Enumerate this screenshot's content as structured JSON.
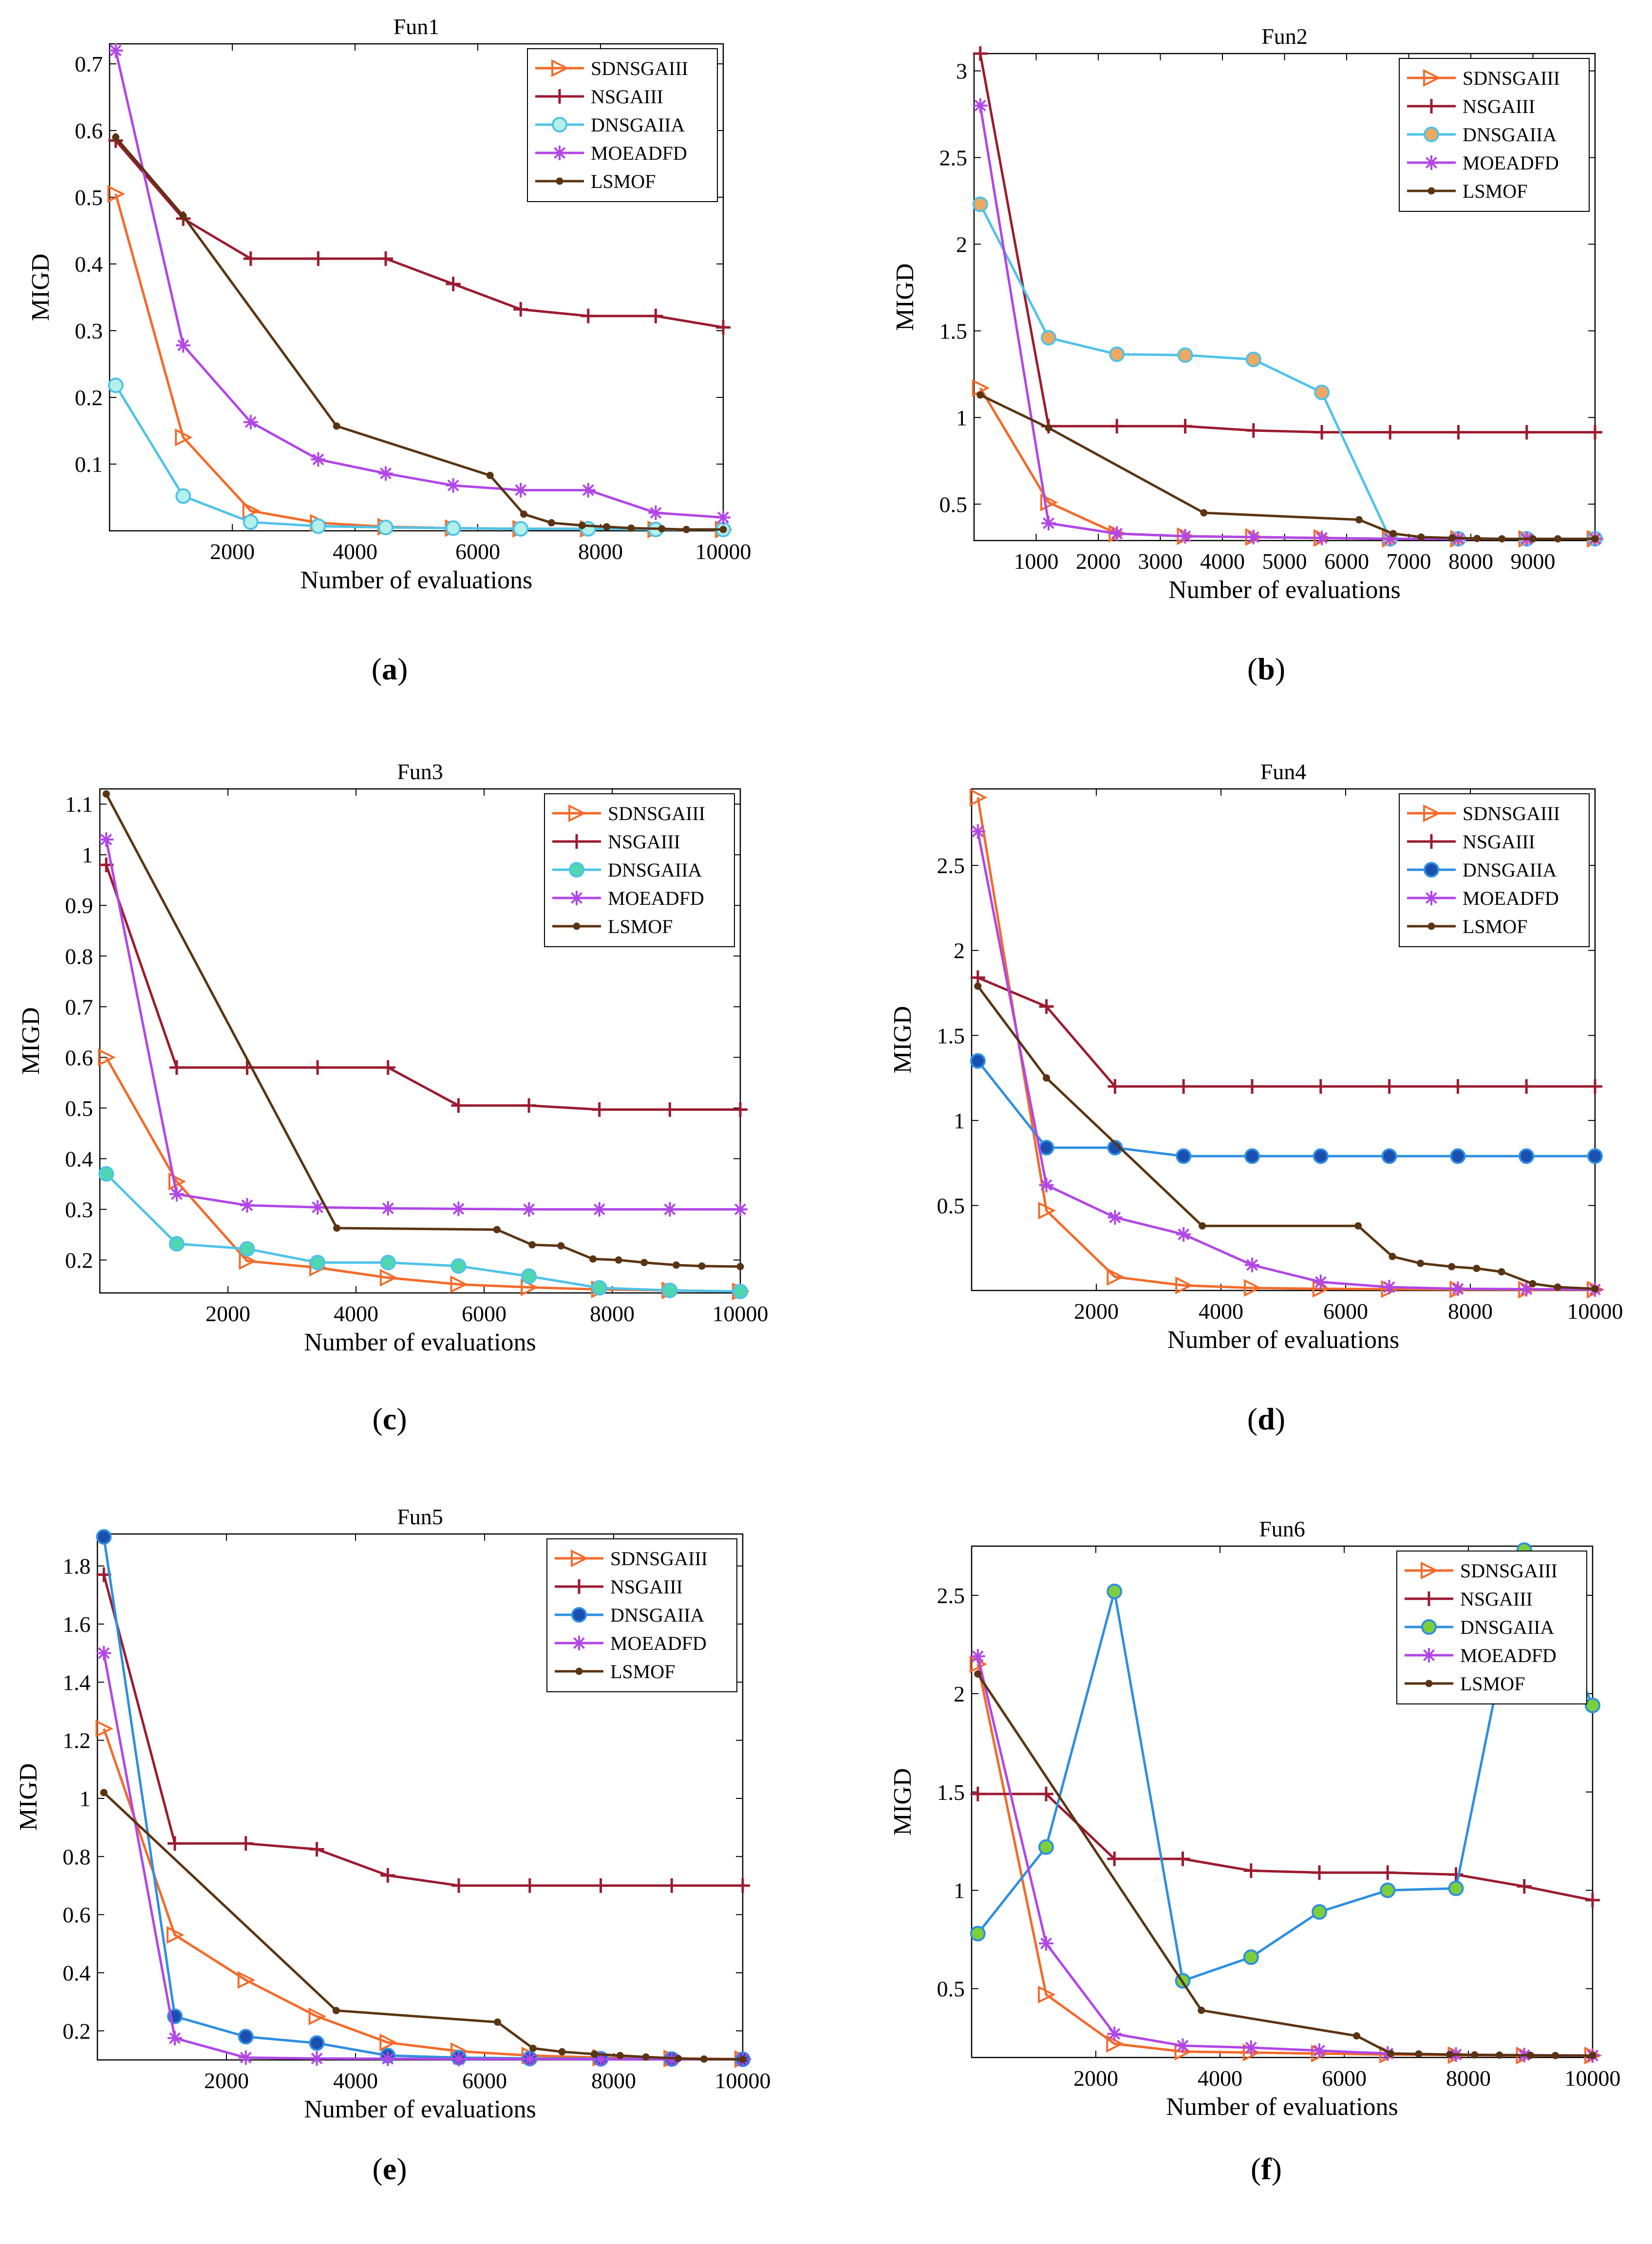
{
  "figure": {
    "panels": [
      {
        "caption": "a"
      },
      {
        "caption": "b"
      },
      {
        "caption": "c"
      },
      {
        "caption": "d"
      },
      {
        "caption": "e"
      },
      {
        "caption": "f"
      }
    ]
  },
  "chart_data": [
    {
      "type": "line",
      "title": "Fun1",
      "xlabel": "Number of evaluations",
      "ylabel": "MIGD",
      "xlim": [
        0,
        10000
      ],
      "ylim": [
        0,
        0.73
      ],
      "xticks": [
        2000,
        4000,
        6000,
        8000,
        10000
      ],
      "yticks": [
        0.1,
        0.2,
        0.3,
        0.4,
        0.5,
        0.6,
        0.7
      ],
      "legend_position": "top-right",
      "series": [
        {
          "name": "SDNSGAIII",
          "color": "#f26b2a",
          "marker": "triangle-right-open",
          "x": [
            100,
            1200,
            2300,
            3400,
            4500,
            5600,
            6700,
            7800,
            8900,
            10000
          ],
          "y": [
            0.505,
            0.14,
            0.03,
            0.012,
            0.006,
            0.004,
            0.003,
            0.003,
            0.002,
            0.002
          ]
        },
        {
          "name": "NSGAIII",
          "color": "#9b1b30",
          "marker": "plus",
          "x": [
            100,
            1200,
            2300,
            3400,
            4500,
            5600,
            6700,
            7800,
            8900,
            10000
          ],
          "y": [
            0.585,
            0.468,
            0.408,
            0.408,
            0.408,
            0.37,
            0.332,
            0.322,
            0.322,
            0.305
          ]
        },
        {
          "name": "DNSGAIIA",
          "color": "#4fc3e8",
          "marker": "circle",
          "fill": "#b4f0ea",
          "x": [
            100,
            1200,
            2300,
            3400,
            4500,
            5600,
            6700,
            7800,
            8900,
            10000
          ],
          "y": [
            0.218,
            0.052,
            0.013,
            0.007,
            0.005,
            0.004,
            0.003,
            0.003,
            0.002,
            0.002
          ]
        },
        {
          "name": "MOEADFD",
          "color": "#b147e6",
          "marker": "star",
          "x": [
            100,
            1200,
            2300,
            3400,
            4500,
            5600,
            6700,
            7800,
            8900,
            10000
          ],
          "y": [
            0.72,
            0.278,
            0.163,
            0.107,
            0.086,
            0.068,
            0.061,
            0.061,
            0.027,
            0.02
          ]
        },
        {
          "name": "LSMOF",
          "color": "#5a3412",
          "marker": "dot",
          "x": [
            100,
            1200,
            3700,
            6200,
            6750,
            7200,
            7700,
            8100,
            8500,
            9000,
            9400,
            10000
          ],
          "y": [
            0.59,
            0.472,
            0.157,
            0.083,
            0.025,
            0.012,
            0.008,
            0.006,
            0.004,
            0.003,
            0.002,
            0.002
          ]
        }
      ]
    },
    {
      "type": "line",
      "title": "Fun2",
      "xlabel": "Number of evaluations",
      "ylabel": "MIGD",
      "xlim": [
        0,
        10000
      ],
      "ylim": [
        0.29,
        3.1
      ],
      "xticks": [
        1000,
        2000,
        3000,
        4000,
        5000,
        6000,
        7000,
        8000,
        9000
      ],
      "yticks": [
        0.5,
        1,
        1.5,
        2,
        2.5,
        3
      ],
      "legend_position": "top-right",
      "series": [
        {
          "name": "SDNSGAIII",
          "color": "#f26b2a",
          "marker": "triangle-right-open",
          "x": [
            100,
            1200,
            2300,
            3400,
            4500,
            5600,
            6700,
            7800,
            8900,
            10000
          ],
          "y": [
            1.17,
            0.51,
            0.33,
            0.315,
            0.31,
            0.305,
            0.3,
            0.3,
            0.3,
            0.3
          ]
        },
        {
          "name": "NSGAIII",
          "color": "#9b1b30",
          "marker": "plus",
          "x": [
            100,
            1200,
            2300,
            3400,
            4500,
            5600,
            6700,
            7800,
            8900,
            10000
          ],
          "y": [
            3.1,
            0.95,
            0.95,
            0.95,
            0.925,
            0.915,
            0.915,
            0.915,
            0.915,
            0.915
          ]
        },
        {
          "name": "DNSGAIIA",
          "color": "#4fc3e8",
          "marker": "circle",
          "fill": "#f0a860",
          "x": [
            100,
            1200,
            2300,
            3400,
            4500,
            5600,
            6700,
            7800,
            8900,
            10000
          ],
          "y": [
            2.23,
            1.46,
            1.365,
            1.36,
            1.335,
            1.145,
            0.3,
            0.3,
            0.3,
            0.3
          ]
        },
        {
          "name": "MOEADFD",
          "color": "#b147e6",
          "marker": "star",
          "x": [
            100,
            1200,
            2300,
            3400,
            4500,
            5600,
            6700,
            7800,
            8900,
            10000
          ],
          "y": [
            2.8,
            0.39,
            0.33,
            0.315,
            0.31,
            0.305,
            0.3,
            0.3,
            0.3,
            0.3
          ]
        },
        {
          "name": "LSMOF",
          "color": "#5a3412",
          "marker": "dot",
          "x": [
            100,
            1200,
            3700,
            6200,
            6750,
            7200,
            7700,
            8100,
            8500,
            9000,
            9400,
            10000
          ],
          "y": [
            1.13,
            0.94,
            0.45,
            0.41,
            0.33,
            0.31,
            0.305,
            0.302,
            0.3,
            0.3,
            0.3,
            0.3
          ]
        }
      ]
    },
    {
      "type": "line",
      "title": "Fun3",
      "xlabel": "Number of evaluations",
      "ylabel": "MIGD",
      "xlim": [
        0,
        10000
      ],
      "ylim": [
        0.135,
        1.13
      ],
      "xticks": [
        2000,
        4000,
        6000,
        8000,
        10000
      ],
      "yticks": [
        0.2,
        0.3,
        0.4,
        0.5,
        0.6,
        0.7,
        0.8,
        0.9,
        1,
        1.1
      ],
      "legend_position": "top-right",
      "series": [
        {
          "name": "SDNSGAIII",
          "color": "#f26b2a",
          "marker": "triangle-right-open",
          "x": [
            100,
            1200,
            2300,
            3400,
            4500,
            5600,
            6700,
            7800,
            8900,
            10000
          ],
          "y": [
            0.6,
            0.355,
            0.198,
            0.185,
            0.165,
            0.152,
            0.146,
            0.142,
            0.14,
            0.138
          ]
        },
        {
          "name": "NSGAIII",
          "color": "#9b1b30",
          "marker": "plus",
          "x": [
            100,
            1200,
            2300,
            3400,
            4500,
            5600,
            6700,
            7800,
            8900,
            10000
          ],
          "y": [
            0.98,
            0.58,
            0.58,
            0.58,
            0.58,
            0.505,
            0.505,
            0.497,
            0.497,
            0.497
          ]
        },
        {
          "name": "DNSGAIIA",
          "color": "#4fc3e8",
          "marker": "circle",
          "fill": "#4fd8b0",
          "x": [
            100,
            1200,
            2300,
            3400,
            4500,
            5600,
            6700,
            7800,
            8900,
            10000
          ],
          "y": [
            0.37,
            0.232,
            0.222,
            0.195,
            0.195,
            0.188,
            0.168,
            0.145,
            0.14,
            0.138
          ]
        },
        {
          "name": "MOEADFD",
          "color": "#b147e6",
          "marker": "star",
          "x": [
            100,
            1200,
            2300,
            3400,
            4500,
            5600,
            6700,
            7800,
            8900,
            10000
          ],
          "y": [
            1.03,
            0.33,
            0.308,
            0.304,
            0.302,
            0.301,
            0.3,
            0.3,
            0.3,
            0.3
          ]
        },
        {
          "name": "LSMOF",
          "color": "#5a3412",
          "marker": "dot",
          "x": [
            100,
            3700,
            6200,
            6750,
            7200,
            7700,
            8100,
            8500,
            9000,
            9400,
            10000
          ],
          "y": [
            1.12,
            0.263,
            0.26,
            0.23,
            0.228,
            0.202,
            0.2,
            0.195,
            0.19,
            0.188,
            0.187
          ]
        }
      ]
    },
    {
      "type": "line",
      "title": "Fun4",
      "xlabel": "Number of evaluations",
      "ylabel": "MIGD",
      "xlim": [
        0,
        10000
      ],
      "ylim": [
        0,
        2.95
      ],
      "xticks": [
        2000,
        4000,
        6000,
        8000,
        10000
      ],
      "yticks": [
        0.5,
        1,
        1.5,
        2,
        2.5
      ],
      "legend_position": "top-right",
      "series": [
        {
          "name": "SDNSGAIII",
          "color": "#f26b2a",
          "marker": "triangle-right-open",
          "x": [
            100,
            1200,
            2300,
            3400,
            4500,
            5600,
            6700,
            7800,
            8900,
            10000
          ],
          "y": [
            2.9,
            0.47,
            0.08,
            0.03,
            0.015,
            0.01,
            0.008,
            0.006,
            0.005,
            0.005
          ]
        },
        {
          "name": "NSGAIII",
          "color": "#9b1b30",
          "marker": "plus",
          "x": [
            100,
            1200,
            2300,
            3400,
            4500,
            5600,
            6700,
            7800,
            8900,
            10000
          ],
          "y": [
            1.84,
            1.67,
            1.2,
            1.2,
            1.2,
            1.2,
            1.2,
            1.2,
            1.2,
            1.2
          ]
        },
        {
          "name": "DNSGAIIA",
          "color": "#2e8fe0",
          "marker": "circle",
          "fill": "#1a4fb0",
          "x": [
            100,
            1200,
            2300,
            3400,
            4500,
            5600,
            6700,
            7800,
            8900,
            10000
          ],
          "y": [
            1.35,
            0.84,
            0.84,
            0.79,
            0.79,
            0.79,
            0.79,
            0.79,
            0.79,
            0.79
          ]
        },
        {
          "name": "MOEADFD",
          "color": "#b147e6",
          "marker": "star",
          "x": [
            100,
            1200,
            2300,
            3400,
            4500,
            5600,
            6700,
            7800,
            8900,
            10000
          ],
          "y": [
            2.7,
            0.62,
            0.43,
            0.33,
            0.15,
            0.05,
            0.02,
            0.01,
            0.008,
            0.006
          ]
        },
        {
          "name": "LSMOF",
          "color": "#5a3412",
          "marker": "dot",
          "x": [
            100,
            1200,
            3700,
            6200,
            6750,
            7200,
            7700,
            8100,
            8500,
            9000,
            9400,
            10000
          ],
          "y": [
            1.79,
            1.25,
            0.38,
            0.38,
            0.2,
            0.16,
            0.14,
            0.13,
            0.11,
            0.04,
            0.02,
            0.01
          ]
        }
      ]
    },
    {
      "type": "line",
      "title": "Fun5",
      "xlabel": "Number of evaluations",
      "ylabel": "MIGD",
      "xlim": [
        0,
        10000
      ],
      "ylim": [
        0.1,
        1.91
      ],
      "xticks": [
        2000,
        4000,
        6000,
        8000,
        10000
      ],
      "yticks": [
        0.2,
        0.4,
        0.6,
        0.8,
        1,
        1.2,
        1.4,
        1.6,
        1.8
      ],
      "legend_position": "top-right",
      "series": [
        {
          "name": "SDNSGAIII",
          "color": "#f26b2a",
          "marker": "triangle-right-open",
          "x": [
            100,
            1200,
            2300,
            3400,
            4500,
            5600,
            6700,
            7800,
            8900,
            10000
          ],
          "y": [
            1.24,
            0.53,
            0.375,
            0.25,
            0.16,
            0.13,
            0.115,
            0.108,
            0.105,
            0.103
          ]
        },
        {
          "name": "NSGAIII",
          "color": "#9b1b30",
          "marker": "plus",
          "x": [
            100,
            1200,
            2300,
            3400,
            4500,
            5600,
            6700,
            7800,
            8900,
            10000
          ],
          "y": [
            1.77,
            0.845,
            0.845,
            0.825,
            0.735,
            0.7,
            0.7,
            0.7,
            0.7,
            0.7
          ]
        },
        {
          "name": "DNSGAIIA",
          "color": "#2e8fe0",
          "marker": "circle",
          "fill": "#1a4fb0",
          "x": [
            100,
            1200,
            2300,
            3400,
            4500,
            5600,
            6700,
            7800,
            8900,
            10000
          ],
          "y": [
            1.9,
            0.25,
            0.18,
            0.158,
            0.115,
            0.108,
            0.105,
            0.104,
            0.103,
            0.102
          ]
        },
        {
          "name": "MOEADFD",
          "color": "#b147e6",
          "marker": "star",
          "x": [
            100,
            1200,
            2300,
            3400,
            4500,
            5600,
            6700,
            7800,
            8900,
            10000
          ],
          "y": [
            1.5,
            0.175,
            0.108,
            0.105,
            0.104,
            0.103,
            0.103,
            0.102,
            0.102,
            0.102
          ]
        },
        {
          "name": "LSMOF",
          "color": "#5a3412",
          "marker": "dot",
          "x": [
            100,
            3700,
            6200,
            6750,
            7200,
            7700,
            8100,
            8500,
            9000,
            9400,
            10000
          ],
          "y": [
            1.02,
            0.27,
            0.23,
            0.14,
            0.128,
            0.12,
            0.115,
            0.11,
            0.105,
            0.103,
            0.102
          ]
        }
      ]
    },
    {
      "type": "line",
      "title": "Fun6",
      "xlabel": "Number of evaluations",
      "ylabel": "MIGD",
      "xlim": [
        0,
        10000
      ],
      "ylim": [
        0.15,
        2.75
      ],
      "xticks": [
        2000,
        4000,
        6000,
        8000,
        10000
      ],
      "yticks": [
        0.5,
        1,
        1.5,
        2,
        2.5
      ],
      "legend_position": "top-right",
      "series": [
        {
          "name": "SDNSGAIII",
          "color": "#f26b2a",
          "marker": "triangle-right-open",
          "x": [
            100,
            1200,
            2300,
            3400,
            4500,
            5600,
            6700,
            7800,
            8900,
            10000
          ],
          "y": [
            2.15,
            0.47,
            0.22,
            0.18,
            0.175,
            0.17,
            0.165,
            0.162,
            0.16,
            0.16
          ]
        },
        {
          "name": "NSGAIII",
          "color": "#9b1b30",
          "marker": "plus",
          "x": [
            100,
            1200,
            2300,
            3400,
            4500,
            5600,
            6700,
            7800,
            8900,
            10000
          ],
          "y": [
            1.49,
            1.49,
            1.16,
            1.16,
            1.1,
            1.09,
            1.09,
            1.08,
            1.02,
            0.95
          ]
        },
        {
          "name": "DNSGAIIA",
          "color": "#2e8fe0",
          "marker": "circle",
          "fill": "#7ccf3a",
          "x": [
            100,
            1200,
            2300,
            3400,
            4500,
            5600,
            6700,
            7800,
            8900,
            10000
          ],
          "y": [
            0.78,
            1.22,
            2.52,
            0.54,
            0.66,
            0.89,
            1.0,
            1.01,
            2.73,
            1.94
          ]
        },
        {
          "name": "MOEADFD",
          "color": "#b147e6",
          "marker": "star",
          "x": [
            100,
            1200,
            2300,
            3400,
            4500,
            5600,
            6700,
            7800,
            8900,
            10000
          ],
          "y": [
            2.19,
            0.73,
            0.27,
            0.21,
            0.2,
            0.185,
            0.17,
            0.165,
            0.162,
            0.16
          ]
        },
        {
          "name": "LSMOF",
          "color": "#5a3412",
          "marker": "dot",
          "x": [
            100,
            3700,
            6200,
            6750,
            7200,
            7700,
            8100,
            8500,
            9000,
            9400,
            10000
          ],
          "y": [
            2.1,
            0.39,
            0.26,
            0.17,
            0.168,
            0.165,
            0.163,
            0.162,
            0.161,
            0.16,
            0.16
          ]
        }
      ]
    }
  ]
}
